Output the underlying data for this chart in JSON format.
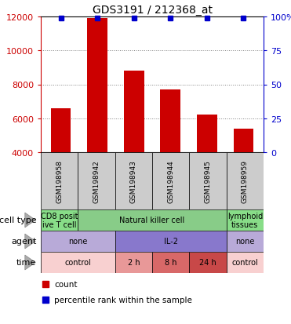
{
  "title": "GDS3191 / 212368_at",
  "samples": [
    "GSM198958",
    "GSM198942",
    "GSM198943",
    "GSM198944",
    "GSM198945",
    "GSM198959"
  ],
  "bar_values": [
    6600,
    11900,
    8800,
    7700,
    6200,
    5400
  ],
  "ylim_left": [
    4000,
    12000
  ],
  "ylim_right": [
    0,
    100
  ],
  "yticks_left": [
    4000,
    6000,
    8000,
    10000,
    12000
  ],
  "yticks_right": [
    0,
    25,
    50,
    75,
    100
  ],
  "bar_color": "#cc0000",
  "percentile_color": "#0000cc",
  "cell_type_row": {
    "label": "cell type",
    "segments": [
      {
        "text": "CD8 posit\nive T cell",
        "color": "#88dd88",
        "colspan": 1
      },
      {
        "text": "Natural killer cell",
        "color": "#88cc88",
        "colspan": 4
      },
      {
        "text": "lymphoid\ntissues",
        "color": "#88dd88",
        "colspan": 1
      }
    ]
  },
  "agent_row": {
    "label": "agent",
    "segments": [
      {
        "text": "none",
        "color": "#b8aad8",
        "colspan": 2
      },
      {
        "text": "IL-2",
        "color": "#8878cc",
        "colspan": 3
      },
      {
        "text": "none",
        "color": "#b8aad8",
        "colspan": 1
      }
    ]
  },
  "time_row": {
    "label": "time",
    "segments": [
      {
        "text": "control",
        "color": "#f8d0d0",
        "colspan": 2
      },
      {
        "text": "2 h",
        "color": "#e89898",
        "colspan": 1
      },
      {
        "text": "8 h",
        "color": "#d86868",
        "colspan": 1
      },
      {
        "text": "24 h",
        "color": "#c84848",
        "colspan": 1
      },
      {
        "text": "control",
        "color": "#f8d0d0",
        "colspan": 1
      }
    ]
  },
  "legend_items": [
    {
      "color": "#cc0000",
      "label": "count"
    },
    {
      "color": "#0000cc",
      "label": "percentile rank within the sample"
    }
  ],
  "background_color": "#ffffff"
}
